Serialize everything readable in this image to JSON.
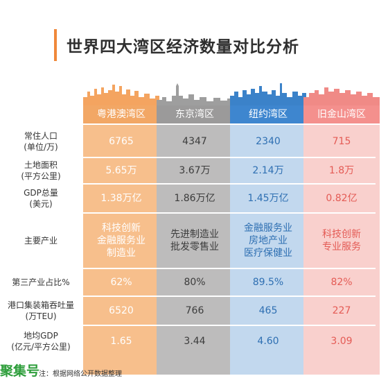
{
  "title": "世界四大湾区经济数量对比分析",
  "chart_data": {
    "type": "table",
    "columns": [
      {
        "name": "粤港澳湾区",
        "header_color": "#f2a765",
        "body_color": "#f7bf8c",
        "text_color": "#ffffff",
        "skyline_color": "#f4a460"
      },
      {
        "name": "东京湾区",
        "header_color": "#9b9a9a",
        "body_color": "#bdbcbc",
        "text_color": "#3c3c3c",
        "skyline_color": "#9e9e9e"
      },
      {
        "name": "纽约湾区",
        "header_color": "#3e86cf",
        "body_color": "#c2d8ee",
        "text_color": "#2e6fb2",
        "skyline_color": "#3b82c9"
      },
      {
        "name": "旧金山湾区",
        "header_color": "#f4908d",
        "body_color": "#f9d0cd",
        "text_color": "#e45b55",
        "skyline_color": "#f08a86"
      }
    ],
    "rows": [
      {
        "label": "常住人口 (单位/万)",
        "values": [
          "6765",
          "4347",
          "2340",
          "715"
        ]
      },
      {
        "label": "土地面积 (平方公里)",
        "values": [
          "5.65万",
          "3.67万",
          "2.14万",
          "1.8万"
        ]
      },
      {
        "label": "GDP总量 (美元)",
        "values": [
          "1.38万亿",
          "1.86万亿",
          "1.45万亿",
          "0.82亿"
        ]
      },
      {
        "label": "主要产业",
        "values": [
          "科技创新 金融服务业 制造业",
          "先进制造业 批发零售业",
          "金融服务业 房地产业 医疗保健业",
          "科技创新 专业服务"
        ]
      },
      {
        "label": "第三产业占比%",
        "values": [
          "62%",
          "80%",
          "89.5%",
          "82%"
        ]
      },
      {
        "label": "港口集装箱吞吐量 (万TEU)",
        "values": [
          "6520",
          "766",
          "465",
          "227"
        ]
      },
      {
        "label": "地均GDP (亿元/平方公里)",
        "values": [
          "1.65",
          "3.44",
          "4.60",
          "3.09"
        ]
      }
    ]
  },
  "watermark": "聚集号",
  "footnote": "注：根据网络公开数据整理"
}
